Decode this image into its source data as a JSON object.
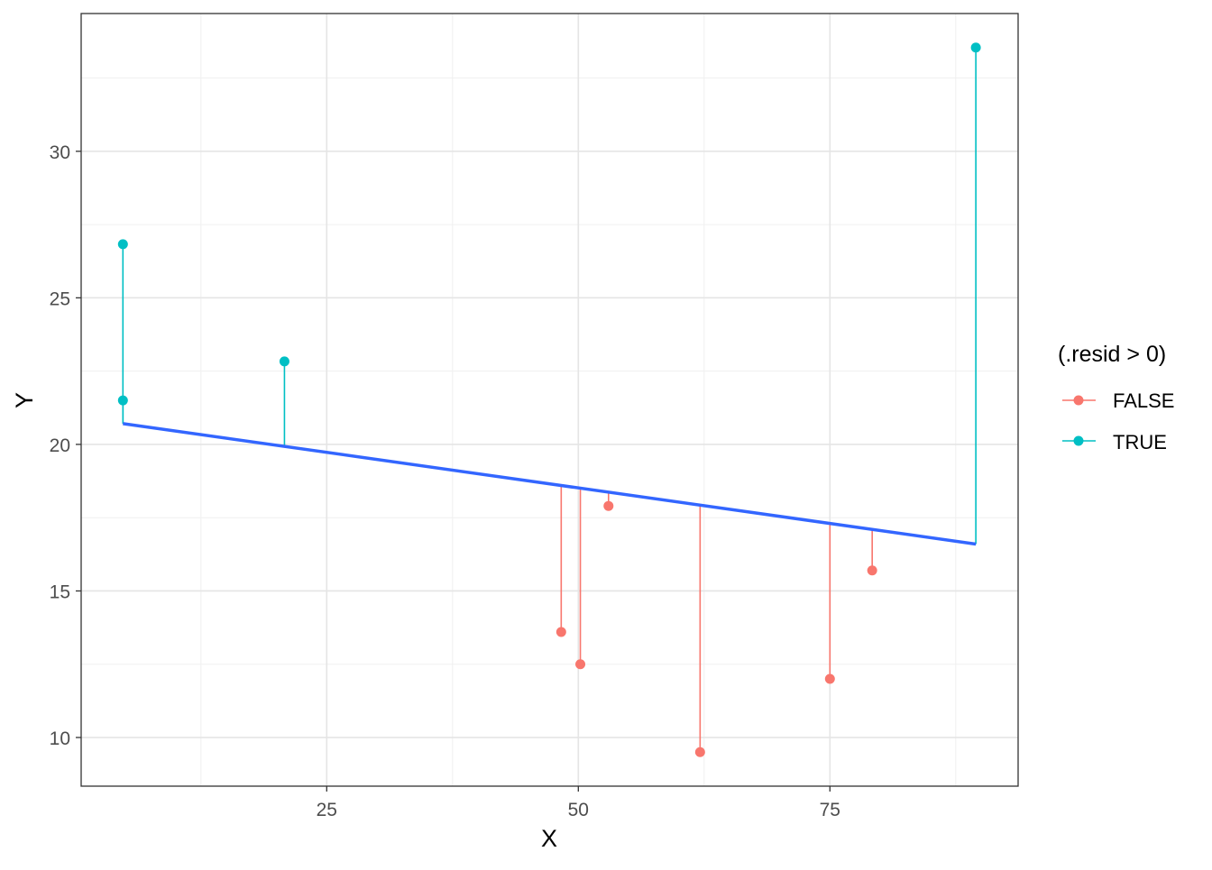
{
  "chart_data": {
    "type": "scatter",
    "title": "",
    "xlabel": "X",
    "ylabel": "Y",
    "xlim": [
      0.6,
      93.7
    ],
    "ylim": [
      8.34,
      34.7
    ],
    "x_ticks": [
      25,
      50,
      75
    ],
    "y_ticks": [
      10,
      15,
      20,
      25,
      30
    ],
    "grid": true,
    "fit_line": {
      "x": [
        4.75,
        89.5
      ],
      "y": [
        20.71,
        16.6
      ],
      "color": "#3366FF"
    },
    "legend": {
      "title": "(.resid > 0)",
      "placement": "right",
      "entries": [
        {
          "label": "FALSE",
          "color": "#F8766D"
        },
        {
          "label": "TRUE",
          "color": "#00BFC4"
        }
      ]
    },
    "points": [
      {
        "x": 4.75,
        "y": 26.83,
        "fitted": 20.71,
        "resid_positive": true
      },
      {
        "x": 4.75,
        "y": 21.5,
        "fitted": 20.71,
        "resid_positive": true
      },
      {
        "x": 20.8,
        "y": 22.83,
        "fitted": 19.93,
        "resid_positive": true
      },
      {
        "x": 48.3,
        "y": 13.6,
        "fitted": 18.6,
        "resid_positive": false
      },
      {
        "x": 50.2,
        "y": 12.5,
        "fitted": 18.51,
        "resid_positive": false
      },
      {
        "x": 53.0,
        "y": 17.9,
        "fitted": 18.37,
        "resid_positive": false
      },
      {
        "x": 62.1,
        "y": 9.5,
        "fitted": 17.93,
        "resid_positive": false
      },
      {
        "x": 75.0,
        "y": 12.0,
        "fitted": 17.3,
        "resid_positive": false
      },
      {
        "x": 79.2,
        "y": 15.7,
        "fitted": 17.1,
        "resid_positive": false
      },
      {
        "x": 89.5,
        "y": 33.54,
        "fitted": 16.6,
        "resid_positive": true
      }
    ]
  }
}
